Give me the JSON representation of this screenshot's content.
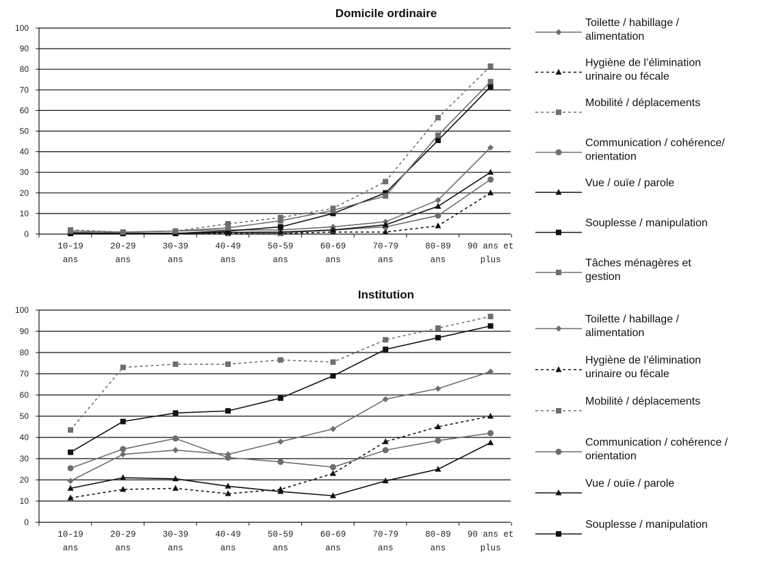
{
  "chart_data": [
    {
      "type": "line",
      "title": "Domicile ordinaire",
      "xlabel": "",
      "ylabel": "",
      "ylim": [
        0,
        100
      ],
      "yticks": [
        0,
        10,
        20,
        30,
        40,
        50,
        60,
        70,
        80,
        90,
        100
      ],
      "grid": "horizontal",
      "legend_position": "right",
      "categories": [
        [
          "10-19",
          "ans"
        ],
        [
          "20-29",
          "ans"
        ],
        [
          "30-39",
          "ans"
        ],
        [
          "40-49",
          "ans"
        ],
        [
          "50-59",
          "ans"
        ],
        [
          "60-69",
          "ans"
        ],
        [
          "70-79",
          "ans"
        ],
        [
          "80-89",
          "ans"
        ],
        [
          "90 ans et",
          "plus"
        ]
      ],
      "series": [
        {
          "name": "Toilette / habillage / alimentation",
          "legend_lines": [
            "Toilette / habillage /",
            "alimentation"
          ],
          "marker": "diamond",
          "dash": false,
          "color": "#6e6e6e",
          "values": [
            1.5,
            1,
            1.5,
            2,
            2,
            3.5,
            6,
            16.5,
            42
          ]
        },
        {
          "name": "Hygiène de l’élimination urinaire ou fécale",
          "legend_lines": [
            "Hygiène de l’élimination",
            "urinaire ou fécale"
          ],
          "marker": "triangle",
          "dash": true,
          "color": "#111111",
          "values": [
            0.5,
            0.3,
            0.3,
            0.3,
            0.3,
            1,
            1,
            4,
            20
          ]
        },
        {
          "name": "Mobilité / déplacements",
          "legend_lines": [
            "Mobilité / déplacements"
          ],
          "marker": "square",
          "dash": true,
          "color": "#6e6e6e",
          "values": [
            2,
            1,
            1.5,
            5,
            8,
            12.5,
            25.5,
            56.5,
            81.5
          ]
        },
        {
          "name": "Communication / cohérence/ orientation",
          "legend_lines": [
            "Communication / cohérence/",
            "orientation"
          ],
          "marker": "circle",
          "dash": false,
          "color": "#6e6e6e",
          "values": [
            0.8,
            0.5,
            0.5,
            0.8,
            0.5,
            2,
            3.5,
            9,
            26.5
          ]
        },
        {
          "name": "Vue / ouïe / parole",
          "legend_lines": [
            "Vue / ouïe / parole"
          ],
          "marker": "triangle",
          "dash": false,
          "color": "#111111",
          "values": [
            0.5,
            0.3,
            0.3,
            0.8,
            1,
            2,
            4.5,
            13.5,
            30
          ]
        },
        {
          "name": "Souplesse / manipulation",
          "legend_lines": [
            "Souplesse / manipulation"
          ],
          "marker": "square",
          "dash": false,
          "color": "#111111",
          "values": [
            0.3,
            0.3,
            0.3,
            1.5,
            3.5,
            10,
            20,
            45.5,
            71.5
          ]
        },
        {
          "name": "Tâches ménagères et gestion",
          "legend_lines": [
            "Tâches ménagères et",
            "gestion"
          ],
          "marker": "square",
          "dash": false,
          "color": "#6e6e6e",
          "values": [
            1.5,
            1,
            1.5,
            3,
            6.5,
            11.5,
            18.5,
            48,
            74
          ]
        }
      ]
    },
    {
      "type": "line",
      "title": "Institution",
      "xlabel": "",
      "ylabel": "",
      "ylim": [
        0,
        100
      ],
      "yticks": [
        0,
        10,
        20,
        30,
        40,
        50,
        60,
        70,
        80,
        90,
        100
      ],
      "grid": "horizontal",
      "legend_position": "right",
      "categories": [
        [
          "10-19",
          "ans"
        ],
        [
          "20-29",
          "ans"
        ],
        [
          "30-39",
          "ans"
        ],
        [
          "40-49",
          "ans"
        ],
        [
          "50-59",
          "ans"
        ],
        [
          "60-69",
          "ans"
        ],
        [
          "70-79",
          "ans"
        ],
        [
          "80-89",
          "ans"
        ],
        [
          "90 ans et",
          "plus"
        ]
      ],
      "series": [
        {
          "name": "Toilette / habillage / alimentation",
          "legend_lines": [
            "Toilette / habillage /",
            "alimentation"
          ],
          "marker": "diamond",
          "dash": false,
          "color": "#6e6e6e",
          "values": [
            19.5,
            32,
            34,
            32,
            38,
            44,
            58,
            63,
            71
          ]
        },
        {
          "name": "Hygiène de l’élimination urinaire ou fécale",
          "legend_lines": [
            "Hygiène de l’élimination",
            "urinaire ou fécale"
          ],
          "marker": "triangle",
          "dash": true,
          "color": "#111111",
          "values": [
            11.5,
            15.5,
            16,
            13.5,
            15.5,
            23,
            38,
            45,
            50
          ]
        },
        {
          "name": "Mobilité / déplacements",
          "legend_lines": [
            "Mobilité / déplacements"
          ],
          "marker": "square",
          "dash": true,
          "color": "#6e6e6e",
          "values": [
            43.5,
            73,
            74.5,
            74.5,
            76.5,
            75.5,
            86,
            91.5,
            97
          ]
        },
        {
          "name": "Communication / cohérence / orientation",
          "legend_lines": [
            "Communication / cohérence /",
            "orientation"
          ],
          "marker": "circle",
          "dash": false,
          "color": "#6e6e6e",
          "values": [
            25.5,
            34.5,
            39.5,
            30.5,
            28.5,
            26,
            34,
            38.5,
            42
          ]
        },
        {
          "name": "Vue / ouïe / parole",
          "legend_lines": [
            "Vue / ouïe / parole"
          ],
          "marker": "triangle",
          "dash": false,
          "color": "#111111",
          "values": [
            16,
            21,
            20.5,
            17,
            14.5,
            12.5,
            19.5,
            25,
            37.5
          ]
        },
        {
          "name": "Souplesse / manipulation",
          "legend_lines": [
            "Souplesse / manipulation"
          ],
          "marker": "square",
          "dash": false,
          "color": "#111111",
          "values": [
            33,
            47.5,
            51.5,
            52.5,
            58.5,
            69,
            81.5,
            87,
            92.5
          ]
        }
      ]
    }
  ]
}
